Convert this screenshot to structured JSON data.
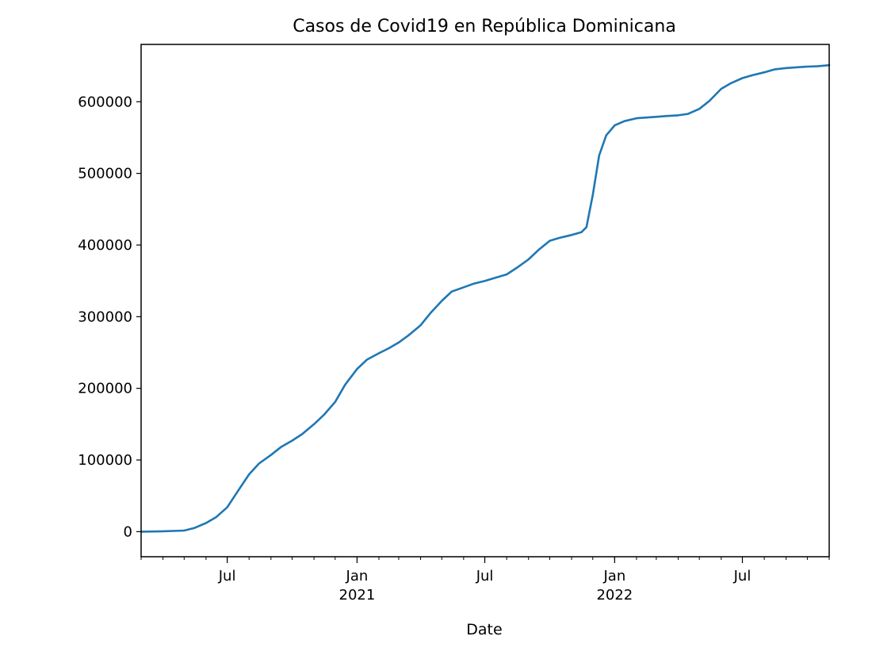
{
  "chart_data": {
    "type": "line",
    "title": "Casos de Covid19 en República Dominicana",
    "xlabel": "Date",
    "ylabel": "",
    "xlim": [
      "2020-03-01",
      "2022-11-01"
    ],
    "ylim": [
      -35000,
      680000
    ],
    "grid": false,
    "legend": "none",
    "color": "#1f77b4",
    "y_ticks": [
      0,
      100000,
      200000,
      300000,
      400000,
      500000,
      600000
    ],
    "y_tick_labels": [
      "0",
      "100000",
      "200000",
      "300000",
      "400000",
      "500000",
      "600000"
    ],
    "x_major_ticks": [
      {
        "date": "2020-07-01",
        "label": "Jul"
      },
      {
        "date": "2021-01-01",
        "label": "Jan\n2021"
      },
      {
        "date": "2021-07-01",
        "label": "Jul"
      },
      {
        "date": "2022-01-01",
        "label": "Jan\n2022"
      },
      {
        "date": "2022-07-01",
        "label": "Jul"
      }
    ],
    "series": [
      {
        "points": [
          [
            "2020-03-01",
            0
          ],
          [
            "2020-04-01",
            500
          ],
          [
            "2020-05-01",
            1500
          ],
          [
            "2020-05-15",
            5000
          ],
          [
            "2020-06-01",
            12000
          ],
          [
            "2020-06-15",
            20000
          ],
          [
            "2020-07-01",
            34000
          ],
          [
            "2020-07-15",
            55000
          ],
          [
            "2020-08-01",
            80000
          ],
          [
            "2020-08-15",
            95000
          ],
          [
            "2020-09-01",
            107000
          ],
          [
            "2020-09-15",
            118000
          ],
          [
            "2020-10-01",
            127000
          ],
          [
            "2020-10-15",
            136000
          ],
          [
            "2020-11-01",
            150000
          ],
          [
            "2020-11-15",
            163000
          ],
          [
            "2020-12-01",
            181000
          ],
          [
            "2020-12-15",
            205000
          ],
          [
            "2021-01-01",
            227000
          ],
          [
            "2021-01-15",
            240000
          ],
          [
            "2021-02-01",
            249000
          ],
          [
            "2021-02-15",
            256000
          ],
          [
            "2021-03-01",
            264000
          ],
          [
            "2021-03-15",
            274000
          ],
          [
            "2021-04-01",
            288000
          ],
          [
            "2021-04-15",
            305000
          ],
          [
            "2021-05-01",
            322000
          ],
          [
            "2021-05-15",
            335000
          ],
          [
            "2021-06-01",
            341000
          ],
          [
            "2021-06-15",
            346000
          ],
          [
            "2021-07-01",
            350000
          ],
          [
            "2021-07-15",
            354000
          ],
          [
            "2021-08-01",
            359000
          ],
          [
            "2021-08-15",
            368000
          ],
          [
            "2021-09-01",
            380000
          ],
          [
            "2021-09-15",
            393000
          ],
          [
            "2021-10-01",
            406000
          ],
          [
            "2021-10-15",
            410000
          ],
          [
            "2021-11-01",
            414000
          ],
          [
            "2021-11-15",
            418000
          ],
          [
            "2021-11-22",
            425000
          ],
          [
            "2021-12-01",
            470000
          ],
          [
            "2021-12-10",
            525000
          ],
          [
            "2021-12-20",
            553000
          ],
          [
            "2022-01-01",
            567000
          ],
          [
            "2022-01-15",
            573000
          ],
          [
            "2022-02-01",
            577000
          ],
          [
            "2022-02-15",
            578000
          ],
          [
            "2022-03-01",
            579000
          ],
          [
            "2022-03-15",
            580000
          ],
          [
            "2022-04-01",
            581000
          ],
          [
            "2022-04-15",
            583000
          ],
          [
            "2022-05-01",
            590000
          ],
          [
            "2022-05-15",
            601000
          ],
          [
            "2022-06-01",
            618000
          ],
          [
            "2022-06-15",
            626000
          ],
          [
            "2022-07-01",
            633000
          ],
          [
            "2022-07-15",
            637000
          ],
          [
            "2022-08-01",
            641000
          ],
          [
            "2022-08-15",
            645000
          ],
          [
            "2022-09-01",
            647000
          ],
          [
            "2022-09-15",
            648000
          ],
          [
            "2022-10-01",
            649000
          ],
          [
            "2022-10-15",
            649500
          ],
          [
            "2022-11-01",
            651000
          ]
        ]
      }
    ]
  }
}
